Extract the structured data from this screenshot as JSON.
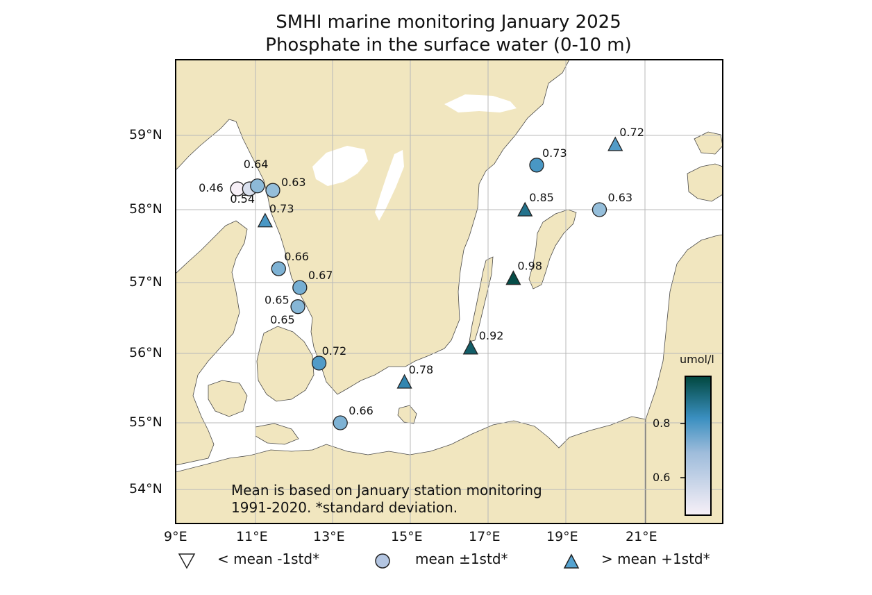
{
  "title": {
    "line1": "SMHI marine monitoring January 2025",
    "line2": "Phosphate in the surface water (0-10 m)"
  },
  "lat_labels": [
    "54°N",
    "55°N",
    "56°N",
    "57°N",
    "58°N",
    "59°N"
  ],
  "lon_labels": [
    "9°E",
    "11°E",
    "13°E",
    "15°E",
    "17°E",
    "19°E",
    "21°E"
  ],
  "note": {
    "line1": "Mean is based on January station monitoring",
    "line2": "1991-2020. *standard deviation."
  },
  "colorbar": {
    "unit": "umol/l",
    "ticks": [
      "0.8",
      "0.6"
    ],
    "min": 0.5,
    "max": 1.0,
    "color_low": "#f7f0f7",
    "color_mid": "#3a8fc0",
    "color_high": "#01473e"
  },
  "legend": {
    "below": "< mean -1std*",
    "within": "mean ±1std*",
    "above": "> mean +1std*"
  },
  "land_color": "#f1e6bf",
  "stations": [
    {
      "lon": 10.55,
      "lat": 58.28,
      "value": 0.46,
      "label": "0.46",
      "marker": "circle"
    },
    {
      "lon": 10.85,
      "lat": 58.28,
      "value": 0.54,
      "label": "0.54",
      "marker": "circle"
    },
    {
      "lon": 11.05,
      "lat": 58.32,
      "value": 0.64,
      "label": "0.64",
      "marker": "circle"
    },
    {
      "lon": 11.45,
      "lat": 58.26,
      "value": 0.63,
      "label": "0.63",
      "marker": "circle"
    },
    {
      "lon": 11.25,
      "lat": 57.85,
      "value": 0.73,
      "label": "0.73",
      "marker": "triangle"
    },
    {
      "lon": 11.6,
      "lat": 57.19,
      "value": 0.66,
      "label": "0.66",
      "marker": "circle"
    },
    {
      "lon": 12.15,
      "lat": 56.93,
      "value": 0.67,
      "label": "0.67",
      "marker": "circle"
    },
    {
      "lon": 12.1,
      "lat": 56.66,
      "value": 0.65,
      "label": "0.65",
      "marker": "circle"
    },
    {
      "lon": 12.65,
      "lat": 55.86,
      "value": 0.72,
      "label": "0.72",
      "marker": "circle"
    },
    {
      "lon": 13.2,
      "lat": 55.0,
      "value": 0.66,
      "label": "0.66",
      "marker": "circle"
    },
    {
      "lon": 14.85,
      "lat": 55.59,
      "value": 0.78,
      "label": "0.78",
      "marker": "triangle"
    },
    {
      "lon": 16.55,
      "lat": 56.08,
      "value": 0.92,
      "label": "0.92",
      "marker": "triangle"
    },
    {
      "lon": 17.65,
      "lat": 57.06,
      "value": 0.98,
      "label": "0.98",
      "marker": "triangle"
    },
    {
      "lon": 17.95,
      "lat": 58.0,
      "value": 0.85,
      "label": "0.85",
      "marker": "triangle"
    },
    {
      "lon": 18.25,
      "lat": 58.6,
      "value": 0.73,
      "label": "0.73",
      "marker": "circle"
    },
    {
      "lon": 19.85,
      "lat": 58.0,
      "value": 0.63,
      "label": "0.63",
      "marker": "circle"
    },
    {
      "lon": 20.25,
      "lat": 58.88,
      "value": 0.72,
      "label": "0.72",
      "marker": "triangle"
    }
  ],
  "extra_labels": [
    {
      "text": "0.65",
      "lon": 11.38,
      "lat": 56.42
    }
  ]
}
